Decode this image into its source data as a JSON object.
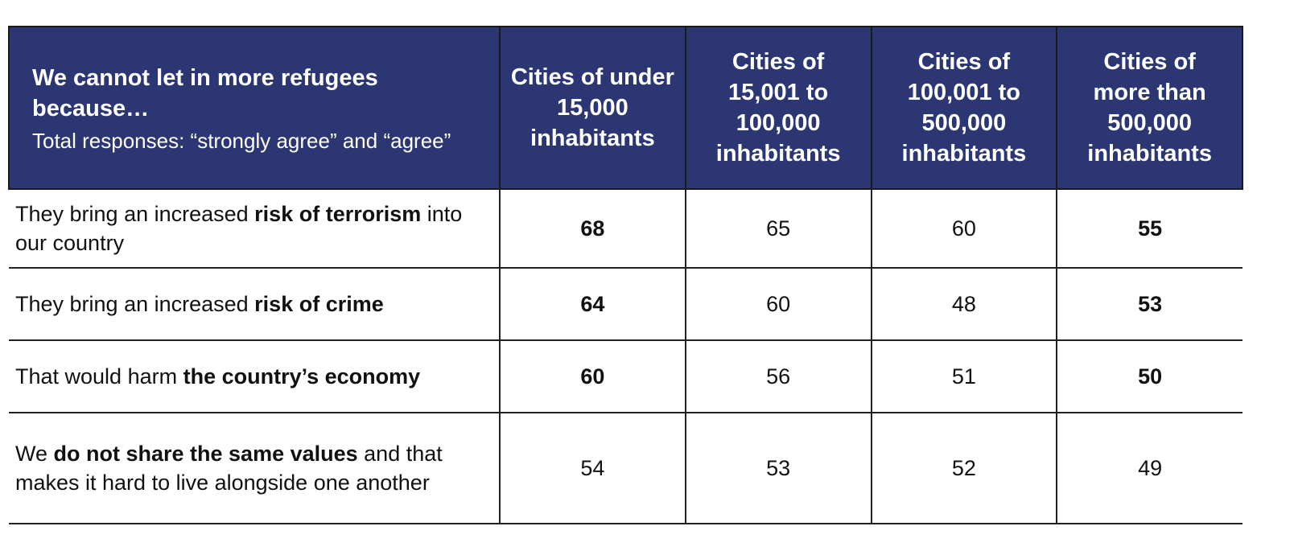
{
  "chart_data": {
    "type": "table",
    "header": {
      "title": "We cannot let in more refugees because…",
      "subtitle": "Total responses: “strongly agree” and “agree”",
      "columns": [
        "Cities of under 15,000 inhabitants",
        "Cities of 15,001 to 100,000 inhabitants",
        "Cities of 100,001 to 500,000 inhabitants",
        "Cities of more than 500,000 inhabitants"
      ]
    },
    "header_color": "#2b3673",
    "rows": [
      {
        "label_parts": [
          {
            "text": "They bring an increased ",
            "bold": false
          },
          {
            "text": "risk of terrorism",
            "bold": true
          },
          {
            "text": " into our country",
            "bold": false
          }
        ],
        "values": [
          68,
          65,
          60,
          55
        ],
        "bold": [
          true,
          false,
          false,
          true
        ]
      },
      {
        "label_parts": [
          {
            "text": "They bring an increased ",
            "bold": false
          },
          {
            "text": "risk of crime",
            "bold": true
          }
        ],
        "values": [
          64,
          60,
          48,
          53
        ],
        "bold": [
          true,
          false,
          false,
          true
        ]
      },
      {
        "label_parts": [
          {
            "text": "That would harm ",
            "bold": false
          },
          {
            "text": "the country’s economy",
            "bold": true
          }
        ],
        "values": [
          60,
          56,
          51,
          50
        ],
        "bold": [
          true,
          false,
          false,
          true
        ]
      },
      {
        "label_parts": [
          {
            "text": "We ",
            "bold": false
          },
          {
            "text": "do not share the same values",
            "bold": true
          },
          {
            "text": " and that makes it hard to live alongside one another",
            "bold": false
          }
        ],
        "values": [
          54,
          53,
          52,
          49
        ],
        "bold": [
          false,
          false,
          false,
          false
        ]
      }
    ]
  }
}
